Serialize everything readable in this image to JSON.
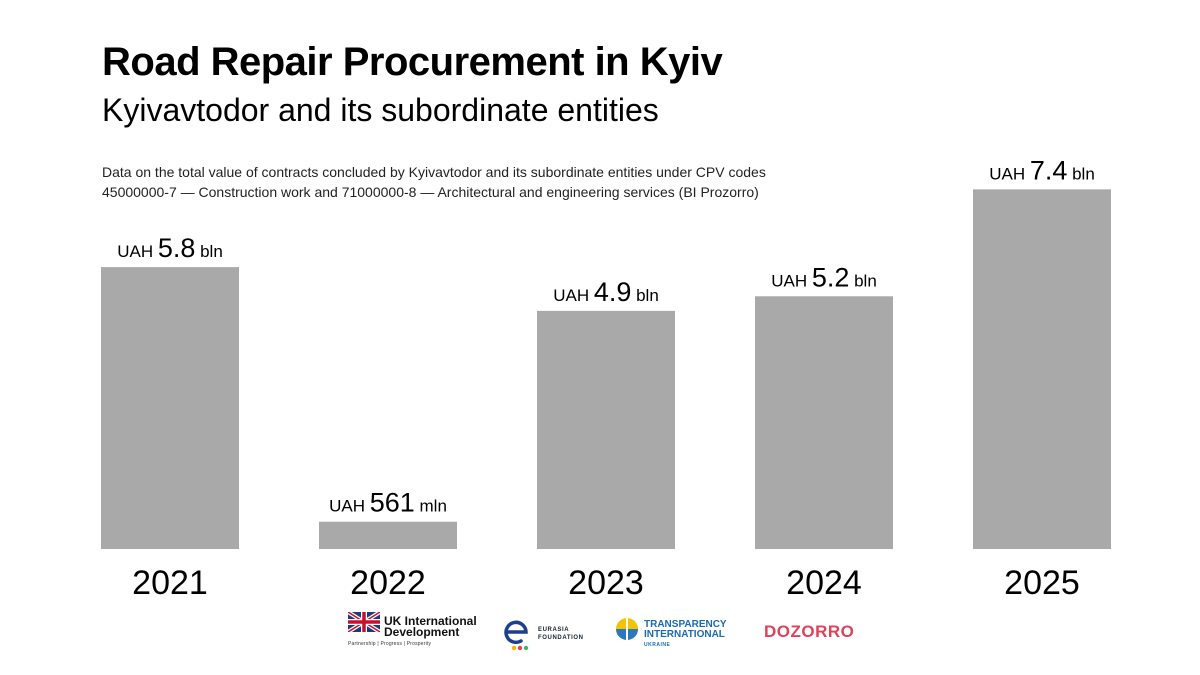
{
  "header": {
    "title": "Road Repair Procurement in Kyiv",
    "subtitle": "Kyivavtodor and its subordinate entities",
    "note_line1": "Data on the total value of contracts concluded by Kyivavtodor and its subordinate entities under CPV codes",
    "note_line2": "45000000-7 — Construction work and 71000000-8 — Architectural and engineering services (BI Prozorro)"
  },
  "chart_data": {
    "type": "bar",
    "unit": "UAH bln",
    "bar_color": "#a9a9a9",
    "categories": [
      "2021",
      "2022",
      "2023",
      "2024",
      "2025"
    ],
    "values": [
      5.8,
      0.561,
      4.9,
      5.2,
      7.4
    ],
    "labels": [
      {
        "prefix": "UAH",
        "value": "5.8",
        "suffix": "bln"
      },
      {
        "prefix": "UAH",
        "value": "561",
        "suffix": "mln"
      },
      {
        "prefix": "UAH",
        "value": "4.9",
        "suffix": "bln"
      },
      {
        "prefix": "UAH",
        "value": "5.2",
        "suffix": "bln"
      },
      {
        "prefix": "UAH",
        "value": "7.4",
        "suffix": "bln"
      }
    ]
  },
  "logos": {
    "uk_line1": "UK International",
    "uk_line2": "Development",
    "uk_tagline": "Partnership | Progress | Prosperity",
    "ef_line1": "EURASIA",
    "ef_line2": "FOUNDATION",
    "ti_line1": "TRANSPARENCY",
    "ti_line2": "INTERNATIONAL",
    "ti_line3": "UKRAINE",
    "dozorro": "DOZORRO"
  }
}
